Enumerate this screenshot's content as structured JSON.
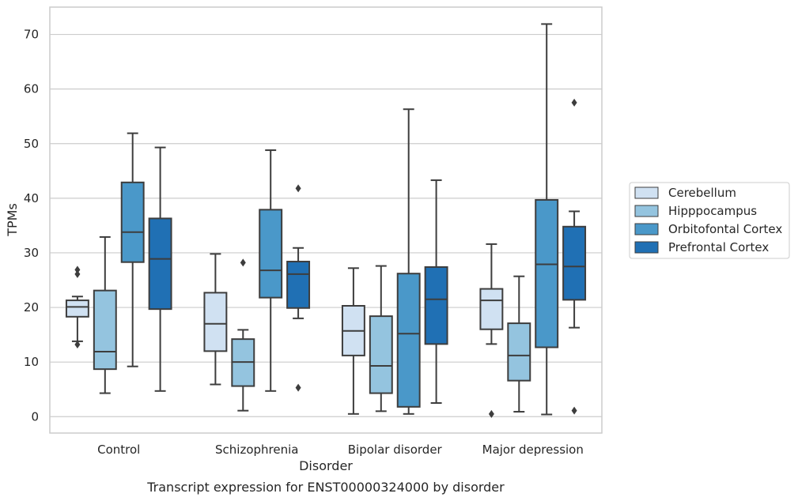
{
  "chart_data": {
    "type": "boxplot",
    "title": "Transcript expression for ENST00000324000 by disorder",
    "xlabel": "Disorder",
    "ylabel": "TPMs",
    "ylim": [
      -3,
      75
    ],
    "yticks": [
      0,
      10,
      20,
      30,
      40,
      50,
      60,
      70
    ],
    "grid": "horizontal",
    "legend_position": "right",
    "categories": [
      "Control",
      "Schizophrenia",
      "Bipolar disorder",
      "Major depression"
    ],
    "series": [
      {
        "name": "Cerebellum",
        "color": "#d0e1f2",
        "boxes": [
          {
            "whislo": 13.8,
            "q1": 18.3,
            "med": 20.1,
            "q3": 21.3,
            "whishi": 22.0,
            "fliers": [
              26.9,
              26.1,
              13.2
            ]
          },
          {
            "whislo": 5.9,
            "q1": 12.0,
            "med": 17.0,
            "q3": 22.7,
            "whishi": 29.8,
            "fliers": []
          },
          {
            "whislo": 0.5,
            "q1": 11.2,
            "med": 15.7,
            "q3": 20.3,
            "whishi": 27.2,
            "fliers": []
          },
          {
            "whislo": 13.3,
            "q1": 16.0,
            "med": 21.3,
            "q3": 23.4,
            "whishi": 31.6,
            "fliers": [
              0.5
            ]
          }
        ]
      },
      {
        "name": "Hipppocampus",
        "color": "#94c4df",
        "boxes": [
          {
            "whislo": 4.3,
            "q1": 8.7,
            "med": 11.9,
            "q3": 23.1,
            "whishi": 32.9,
            "fliers": []
          },
          {
            "whislo": 1.1,
            "q1": 5.6,
            "med": 10.0,
            "q3": 14.2,
            "whishi": 15.9,
            "fliers": [
              28.2
            ]
          },
          {
            "whislo": 1.0,
            "q1": 4.3,
            "med": 9.3,
            "q3": 18.4,
            "whishi": 27.6,
            "fliers": []
          },
          {
            "whislo": 0.9,
            "q1": 6.6,
            "med": 11.2,
            "q3": 17.1,
            "whishi": 25.7,
            "fliers": []
          }
        ]
      },
      {
        "name": "Orbitofontal Cortex",
        "color": "#4a98c9",
        "boxes": [
          {
            "whislo": 9.2,
            "q1": 28.3,
            "med": 33.8,
            "q3": 42.9,
            "whishi": 51.9,
            "fliers": []
          },
          {
            "whislo": 4.7,
            "q1": 21.8,
            "med": 26.8,
            "q3": 37.9,
            "whishi": 48.8,
            "fliers": []
          },
          {
            "whislo": 0.5,
            "q1": 1.8,
            "med": 15.2,
            "q3": 26.2,
            "whishi": 56.3,
            "fliers": []
          },
          {
            "whislo": 0.4,
            "q1": 12.7,
            "med": 27.9,
            "q3": 39.7,
            "whishi": 71.9,
            "fliers": []
          }
        ]
      },
      {
        "name": "Prefrontal Cortex",
        "color": "#2070b4",
        "boxes": [
          {
            "whislo": 4.7,
            "q1": 19.7,
            "med": 28.9,
            "q3": 36.3,
            "whishi": 49.3,
            "fliers": []
          },
          {
            "whislo": 18.0,
            "q1": 19.9,
            "med": 26.1,
            "q3": 28.4,
            "whishi": 30.9,
            "fliers": [
              41.8,
              5.3
            ]
          },
          {
            "whislo": 2.5,
            "q1": 13.3,
            "med": 21.5,
            "q3": 27.4,
            "whishi": 43.3,
            "fliers": []
          },
          {
            "whislo": 16.3,
            "q1": 21.4,
            "med": 27.5,
            "q3": 34.8,
            "whishi": 37.6,
            "fliers": [
              57.5,
              1.1
            ]
          }
        ]
      }
    ]
  }
}
